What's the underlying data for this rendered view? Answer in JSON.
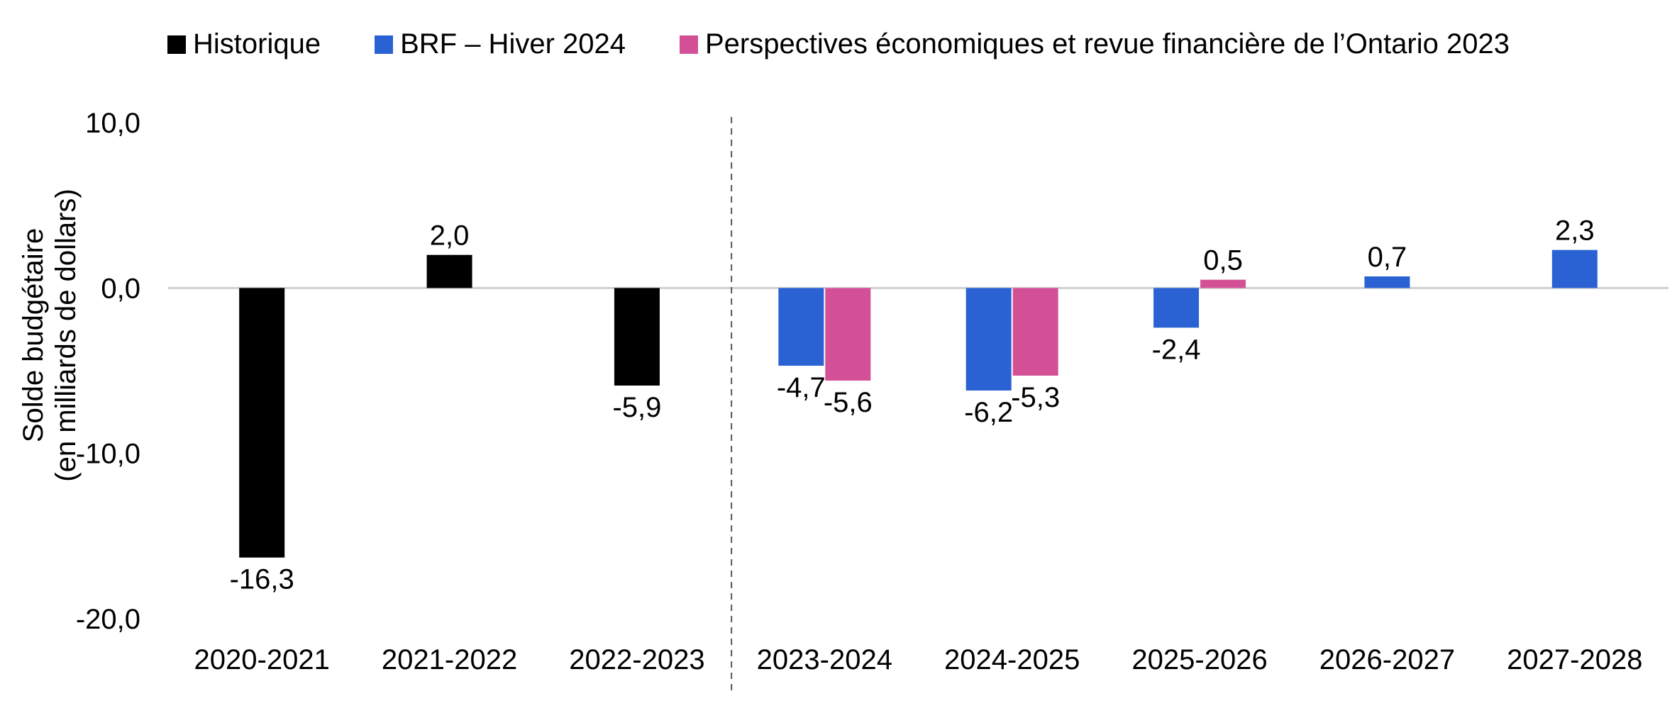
{
  "chart_data": {
    "type": "bar",
    "categories": [
      "2020-2021",
      "2021-2022",
      "2022-2023",
      "2023-2024",
      "2024-2025",
      "2025-2026",
      "2026-2027",
      "2027-2028"
    ],
    "series": [
      {
        "name": "Historique",
        "color": "#000000",
        "values": [
          -16.3,
          2.0,
          -5.9,
          null,
          null,
          null,
          null,
          null
        ],
        "labels": [
          "-16,3",
          "2,0",
          "-5,9",
          null,
          null,
          null,
          null,
          null
        ]
      },
      {
        "name": "BRF – Hiver 2024",
        "color": "#2a62d4",
        "values": [
          null,
          null,
          null,
          -4.7,
          -6.2,
          -2.4,
          0.7,
          2.3
        ],
        "labels": [
          null,
          null,
          null,
          "-4,7",
          "-6,2",
          "-2,4",
          "0,7",
          "2,3"
        ]
      },
      {
        "name": "Perspectives économiques et revue financière de l’Ontario 2023",
        "color": "#d45096",
        "values": [
          null,
          null,
          null,
          -5.6,
          -5.3,
          0.5,
          null,
          null
        ],
        "labels": [
          null,
          null,
          null,
          "-5,6",
          "-5,3",
          "0,5",
          null,
          null
        ]
      }
    ],
    "ylabel": "Solde budgétaire\n(en milliards de dollars)",
    "ylim": [
      -20,
      10
    ],
    "yticks": [
      {
        "value": 10,
        "label": "10,0"
      },
      {
        "value": 0,
        "label": "0,0"
      },
      {
        "value": -10,
        "label": "-10,0"
      },
      {
        "value": -20,
        "label": "-20,0"
      }
    ],
    "divider_after_category": 2,
    "legend_position": "top",
    "grid": false
  }
}
